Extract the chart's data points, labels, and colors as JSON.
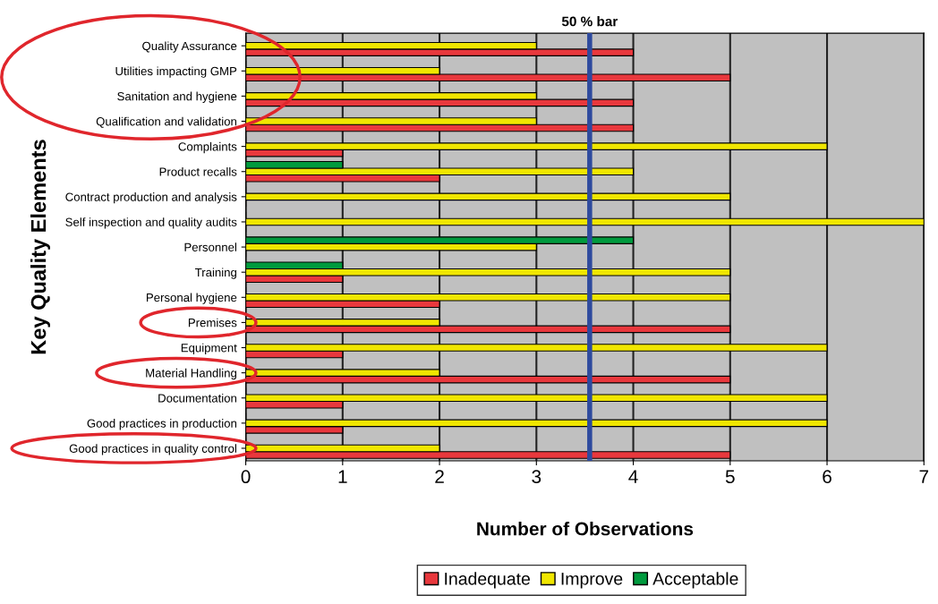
{
  "chart_data": {
    "type": "bar",
    "orientation": "horizontal",
    "categories": [
      "Quality Assurance",
      "Utilities impacting GMP",
      "Sanitation and hygiene",
      "Qualification and validation",
      "Complaints",
      "Product recalls",
      "Contract production and analysis",
      "Self inspection and quality audits",
      "Personnel",
      "Training",
      "Personal hygiene",
      "Premises",
      "Equipment",
      "Material Handling",
      "Documentation",
      "Good practices in production",
      "Good practices in quality control"
    ],
    "series": [
      {
        "name": "Inadequate",
        "color": "#e8383d",
        "values": [
          4,
          5,
          4,
          4,
          1,
          2,
          0,
          0,
          0,
          1,
          2,
          5,
          1,
          5,
          1,
          1,
          5
        ]
      },
      {
        "name": "Improve",
        "color": "#f0e600",
        "values": [
          3,
          2,
          3,
          3,
          6,
          4,
          5,
          7,
          3,
          5,
          5,
          2,
          6,
          2,
          6,
          6,
          2
        ]
      },
      {
        "name": "Acceptable",
        "color": "#009a3e",
        "values": [
          0,
          0,
          0,
          0,
          0,
          1,
          0,
          0,
          4,
          1,
          0,
          0,
          0,
          0,
          0,
          0,
          0
        ]
      }
    ],
    "xlabel": "Number of Observations",
    "ylabel": "Key Quality Elements",
    "xlim": [
      0,
      7
    ],
    "xticks": [
      0,
      1,
      2,
      3,
      4,
      5,
      6,
      7
    ],
    "grid": "x",
    "legend": "bottom",
    "ref_lines": [
      {
        "axis": "x",
        "value": 3.55,
        "label": "50 % bar",
        "color": "#2e4a9e"
      }
    ]
  }
}
